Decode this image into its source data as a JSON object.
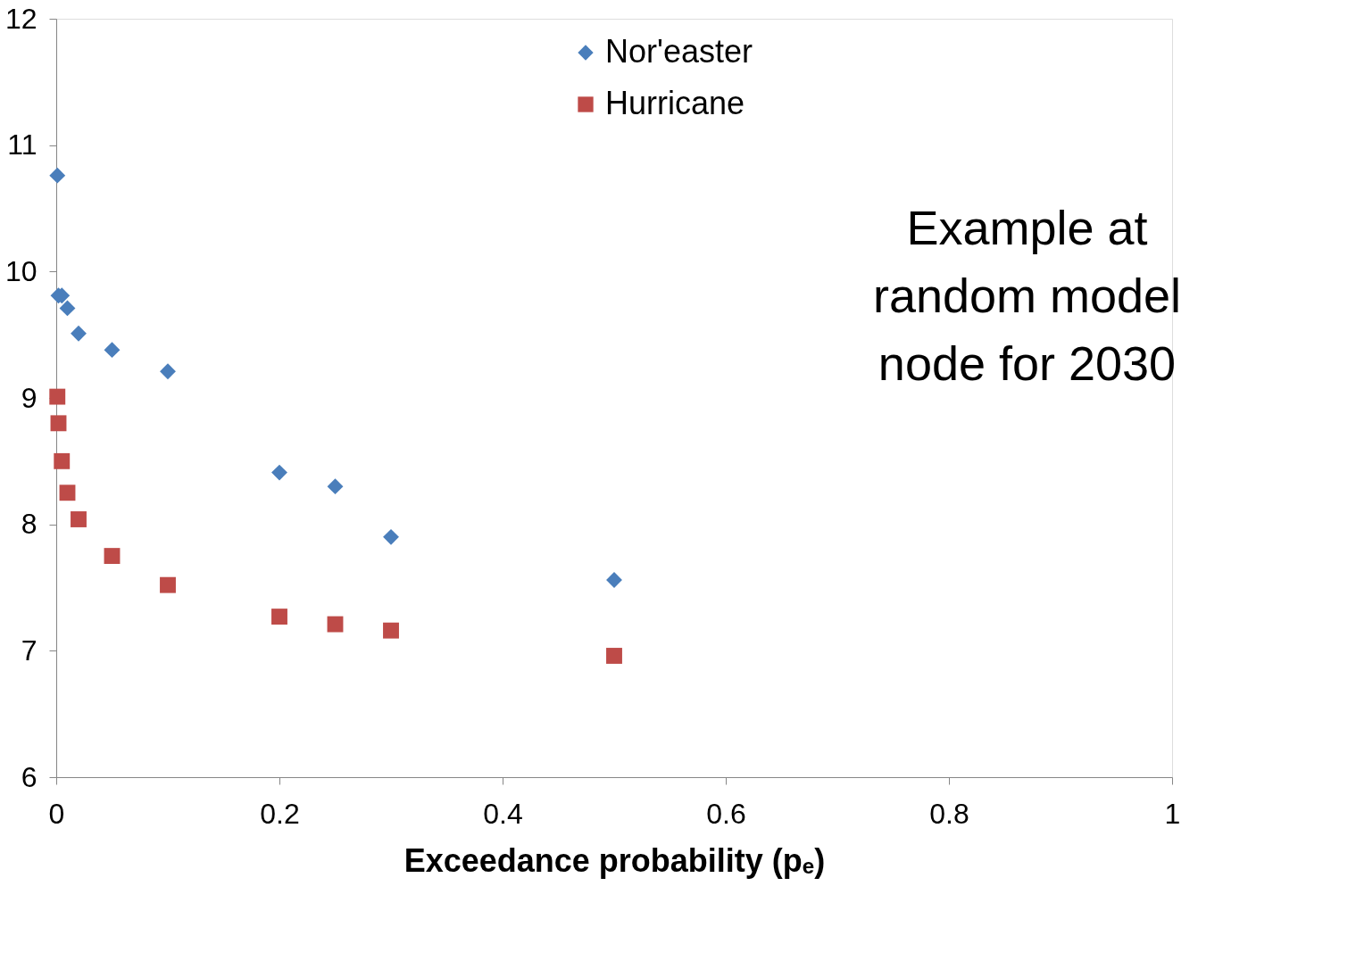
{
  "chart_data": {
    "type": "scatter",
    "xlabel": "Exceedance probability (pₑ)",
    "xlim": [
      0,
      1
    ],
    "xticks": [
      0,
      0.2,
      0.4,
      0.6,
      0.8,
      1
    ],
    "ylim": [
      6,
      12
    ],
    "yticks": [
      6,
      7,
      8,
      9,
      10,
      11,
      12
    ],
    "grid": false,
    "legend": "top",
    "annotations": [
      "Example at random model node for 2030"
    ],
    "series": [
      {
        "name": "Nor'easter",
        "color": "#4a7ebb",
        "marker": "diamond",
        "x": [
          0.001,
          0.002,
          0.005,
          0.01,
          0.02,
          0.05,
          0.1,
          0.2,
          0.25,
          0.3,
          0.5
        ],
        "values": [
          10.76,
          9.81,
          9.81,
          9.71,
          9.51,
          9.38,
          9.21,
          8.41,
          8.3,
          7.9,
          7.56
        ]
      },
      {
        "name": "Hurricane",
        "color": "#be4b48",
        "marker": "square",
        "x": [
          0.001,
          0.002,
          0.005,
          0.01,
          0.02,
          0.05,
          0.1,
          0.2,
          0.25,
          0.3,
          0.5
        ],
        "values": [
          9.01,
          8.8,
          8.5,
          8.25,
          8.04,
          7.75,
          7.52,
          7.27,
          7.21,
          7.16,
          6.96
        ]
      }
    ]
  }
}
